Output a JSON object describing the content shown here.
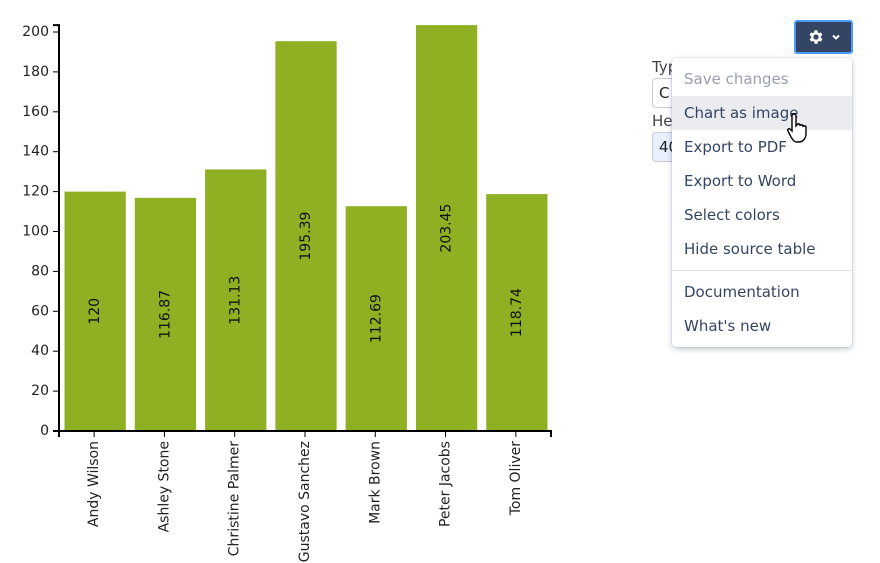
{
  "chart_data": {
    "type": "bar",
    "categories": [
      "Andy Wilson",
      "Ashley Stone",
      "Christine Palmer",
      "Gustavo Sanchez",
      "Mark Brown",
      "Peter Jacobs",
      "Tom Oliver"
    ],
    "values": [
      120,
      116.87,
      131.13,
      195.39,
      112.69,
      203.45,
      118.74
    ],
    "data_labels": [
      "120",
      "116.87",
      "131.13",
      "195.39",
      "112.69",
      "203.45",
      "118.74"
    ],
    "ylim": [
      0,
      203.45
    ],
    "yticks": [
      0,
      20,
      40,
      60,
      80,
      100,
      120,
      140,
      160,
      180,
      200
    ],
    "bar_color": "#8fb023",
    "grid": false,
    "title": "",
    "xlabel": "",
    "ylabel": ""
  },
  "form": {
    "type_label": "Typ",
    "type_value": "C",
    "height_label": "He",
    "height_value": "40"
  },
  "toolbar": {
    "gear_icon": "gear-icon",
    "chevron_icon": "chevron-down-icon"
  },
  "menu": {
    "items": [
      "Save changes",
      "Chart as image",
      "Export to PDF",
      "Export to Word",
      "Select colors",
      "Hide source table"
    ],
    "items2": [
      "Documentation",
      "What's new"
    ]
  }
}
